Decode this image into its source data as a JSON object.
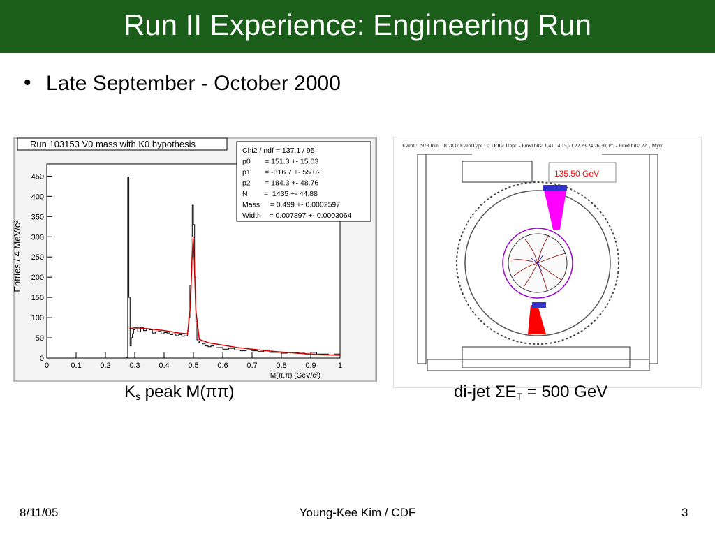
{
  "slide": {
    "title": "Run II Experience: Engineering Run",
    "bullet": "Late September - October 2000",
    "left_caption": {
      "k": "K",
      "k_sub": "s",
      "rest": " peak M(ππ)"
    },
    "right_caption": {
      "pre": "di-jet ΣE",
      "sub": "T",
      "post": " = 500 GeV"
    },
    "footer": {
      "date": "8/11/05",
      "author": "Young-Kee Kim / CDF",
      "page": "3"
    }
  },
  "colors": {
    "title_bg": "#1a5e1a",
    "fit_line": "#cc0000",
    "event_red": "#ff0000",
    "event_magenta": "#ff00ff",
    "event_blue": "#3333cc"
  },
  "chart_data": {
    "type": "line",
    "title": "Run 103153 V0 mass with K0 hypothesis",
    "xlabel": "M(π,π)  (GeV/c²)",
    "ylabel": "Entries / 4 MeV/c²",
    "xlim": [
      0,
      1
    ],
    "ylim": [
      0,
      480
    ],
    "xticks": [
      0,
      0.1,
      0.2,
      0.3,
      0.4,
      0.5,
      0.6,
      0.7,
      0.8,
      0.9,
      1
    ],
    "xtick_labels": [
      "0",
      "0.1",
      "0.2",
      "0.3",
      "0.4",
      "0.5",
      "0.6",
      "0.7",
      "0.8",
      "0.9",
      "1"
    ],
    "yticks": [
      0,
      50,
      100,
      150,
      200,
      250,
      300,
      350,
      400,
      450
    ],
    "stats": [
      "Chi2 / ndf = 137.1 / 95",
      "p0       = 151.3 +- 15.03",
      "p1       = -316.7 +- 55.02",
      "p2       = 184.3 +- 48.76",
      "N        =  1435 +- 44.88",
      "Mass     = 0.499 +- 0.0002597",
      "Width    = 0.007897 +- 0.0003064"
    ],
    "x": [
      0.27,
      0.276,
      0.28,
      0.284,
      0.288,
      0.292,
      0.296,
      0.3,
      0.31,
      0.32,
      0.33,
      0.34,
      0.35,
      0.36,
      0.37,
      0.38,
      0.39,
      0.4,
      0.41,
      0.42,
      0.43,
      0.44,
      0.45,
      0.46,
      0.47,
      0.48,
      0.484,
      0.488,
      0.492,
      0.496,
      0.5,
      0.504,
      0.508,
      0.512,
      0.516,
      0.52,
      0.53,
      0.54,
      0.55,
      0.56,
      0.57,
      0.58,
      0.6,
      0.62,
      0.64,
      0.66,
      0.68,
      0.7,
      0.72,
      0.74,
      0.76,
      0.78,
      0.8,
      0.82,
      0.84,
      0.86,
      0.88,
      0.9,
      0.92,
      0.94,
      0.96,
      0.98,
      1.0
    ],
    "values": [
      2,
      448,
      150,
      30,
      50,
      60,
      70,
      72,
      65,
      75,
      68,
      72,
      70,
      62,
      65,
      66,
      60,
      63,
      62,
      58,
      60,
      55,
      58,
      54,
      55,
      65,
      100,
      180,
      300,
      378,
      330,
      200,
      90,
      45,
      38,
      42,
      35,
      30,
      28,
      30,
      25,
      26,
      22,
      24,
      20,
      18,
      20,
      18,
      16,
      20,
      14,
      14,
      12,
      14,
      13,
      12,
      10,
      14,
      10,
      10,
      8,
      10,
      8
    ],
    "fit": {
      "x": [
        0.28,
        0.3,
        0.35,
        0.4,
        0.45,
        0.48,
        0.49,
        0.495,
        0.499,
        0.503,
        0.508,
        0.52,
        0.55,
        0.6,
        0.65,
        0.7,
        0.75,
        0.8,
        0.85,
        0.9,
        0.95,
        1.0
      ],
      "values": [
        72,
        75,
        72,
        68,
        62,
        60,
        130,
        240,
        300,
        240,
        120,
        46,
        38,
        32,
        26,
        22,
        18,
        15,
        12,
        10,
        8,
        7
      ]
    }
  },
  "event_display": {
    "header": "Event : 7973   Run : 102837   EventType : 0   TRIG: Unpr. - Fired bits: 1,41,14,15,21,22,23,24,26,30, Pr. - Fired bits: 22, , Myro",
    "et_label": "135.50 GeV"
  }
}
